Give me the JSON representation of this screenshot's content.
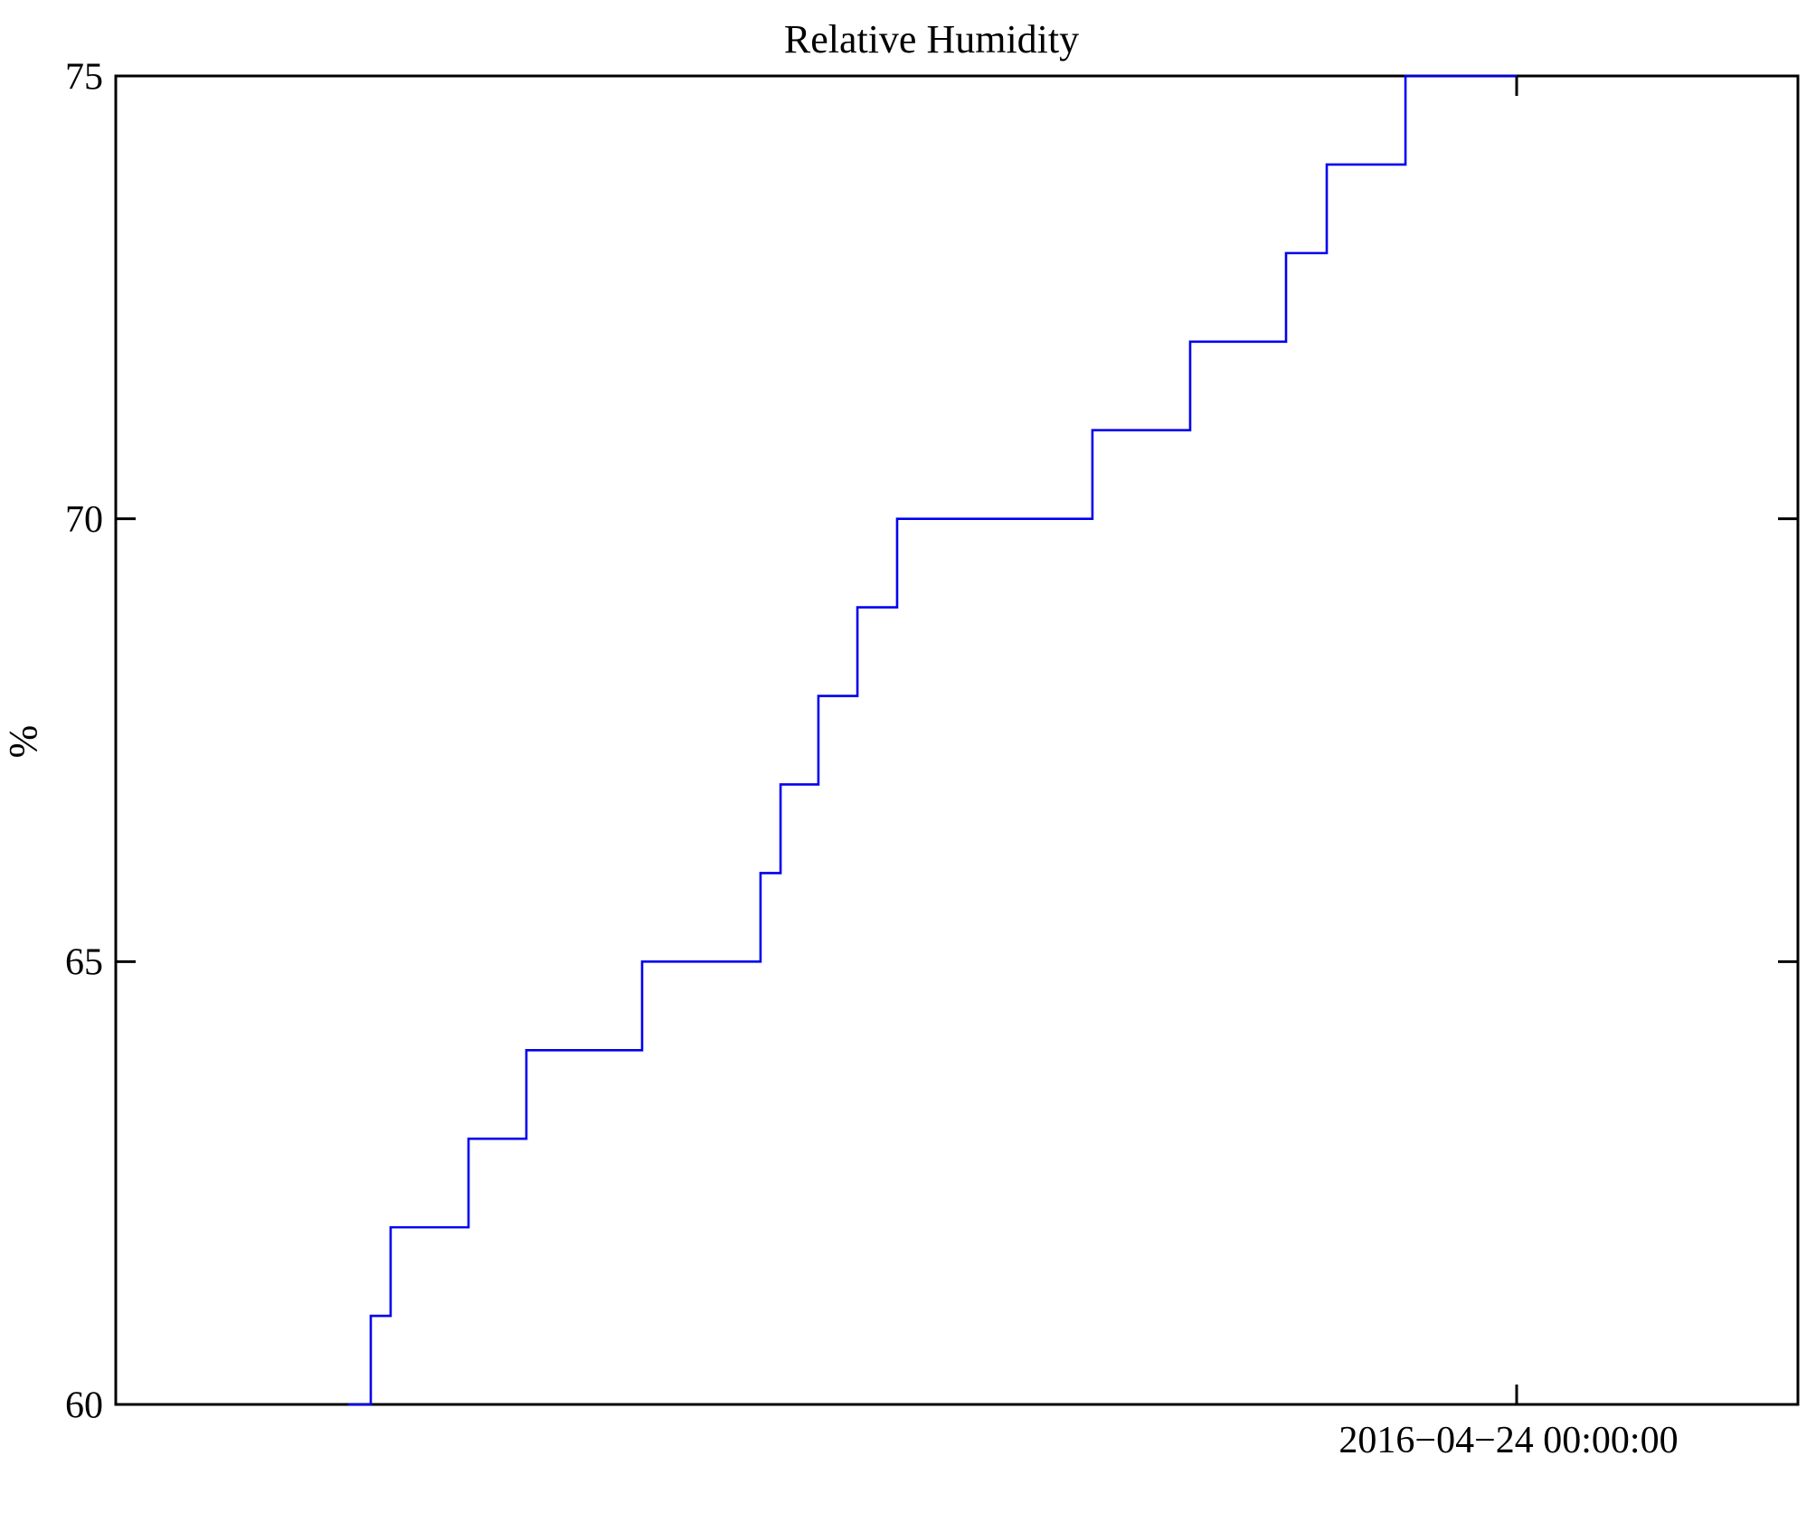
{
  "figure": {
    "background_color": "#ffffff",
    "axis_color": "#000000"
  },
  "chart_data": {
    "type": "line",
    "line_style": "step",
    "title": "Relative Humidity",
    "xlabel": "",
    "ylabel": "%",
    "ylim": [
      60,
      75
    ],
    "y_ticks": [
      60,
      65,
      70,
      75
    ],
    "grid": false,
    "legend": "none",
    "x_tick": {
      "label": "2016−04−24 00:00:00",
      "position_frac": 0.8328
    },
    "line_color": "#0000ee",
    "series": [
      {
        "name": "Relative Humidity",
        "unit": "%",
        "steps": [
          {
            "x0": 0.1382,
            "x1": 0.1516,
            "y": 60
          },
          {
            "x0": 0.1516,
            "x1": 0.1634,
            "y": 61
          },
          {
            "x0": 0.1634,
            "x1": 0.2097,
            "y": 62
          },
          {
            "x0": 0.2097,
            "x1": 0.2441,
            "y": 63
          },
          {
            "x0": 0.2441,
            "x1": 0.3129,
            "y": 64
          },
          {
            "x0": 0.3129,
            "x1": 0.3833,
            "y": 65
          },
          {
            "x0": 0.3833,
            "x1": 0.3952,
            "y": 66
          },
          {
            "x0": 0.3952,
            "x1": 0.4177,
            "y": 67
          },
          {
            "x0": 0.4177,
            "x1": 0.4409,
            "y": 68
          },
          {
            "x0": 0.4409,
            "x1": 0.4645,
            "y": 69
          },
          {
            "x0": 0.4645,
            "x1": 0.5806,
            "y": 70
          },
          {
            "x0": 0.5806,
            "x1": 0.6387,
            "y": 71
          },
          {
            "x0": 0.6387,
            "x1": 0.6957,
            "y": 72
          },
          {
            "x0": 0.6957,
            "x1": 0.7199,
            "y": 73
          },
          {
            "x0": 0.7199,
            "x1": 0.7667,
            "y": 74
          },
          {
            "x0": 0.7667,
            "x1": 0.8328,
            "y": 75
          }
        ]
      }
    ]
  }
}
